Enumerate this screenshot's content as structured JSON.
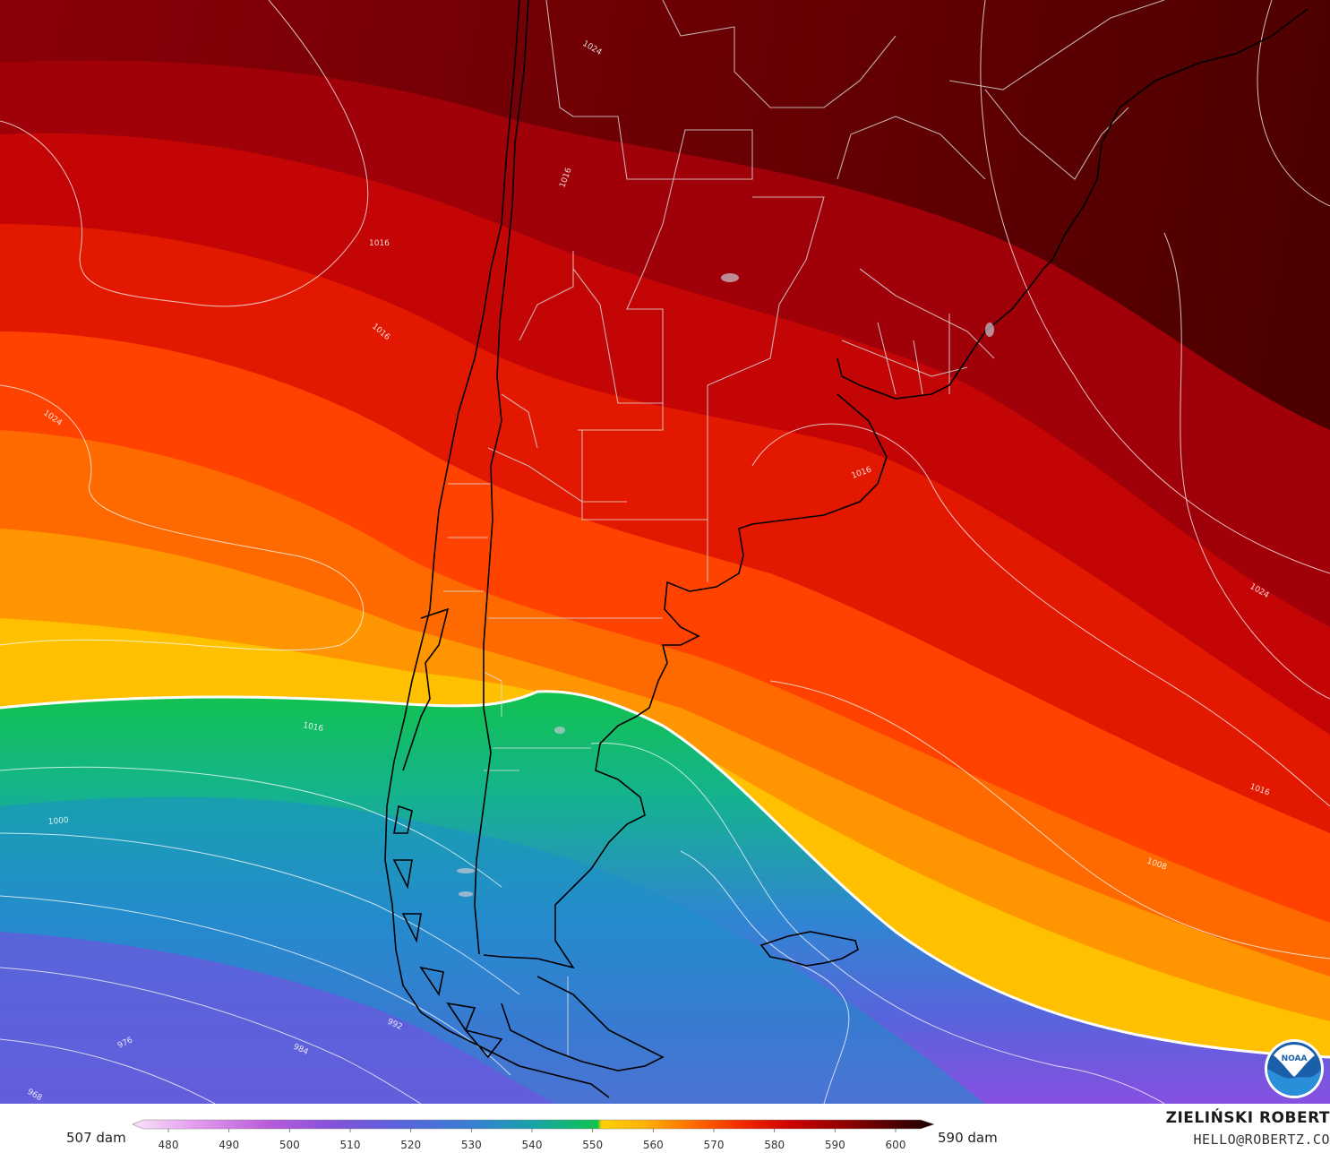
{
  "map": {
    "isobar_labels": [
      "1024",
      "1016",
      "1016",
      "1024",
      "1016",
      "1016",
      "1000",
      "992",
      "984",
      "976",
      "968",
      "1016",
      "1008",
      "1024",
      "1016"
    ]
  },
  "legend": {
    "left_label": "507 dam",
    "right_label": "590 dam",
    "ticks": [
      "480",
      "490",
      "500",
      "510",
      "520",
      "530",
      "540",
      "550",
      "560",
      "570",
      "580",
      "590",
      "600"
    ],
    "colors": [
      "#f9d8f6",
      "#e08ce8",
      "#b255d8",
      "#7f4fd9",
      "#5a62dc",
      "#3a7bd5",
      "#1d9bb8",
      "#12b88a",
      "#0cc850",
      "#ffd000",
      "#ff9a00",
      "#ff5a00",
      "#f01e00",
      "#c80000",
      "#8b0000",
      "#5a0000",
      "#2a0000"
    ]
  },
  "credit": {
    "name": "ZIELIŃSKI ROBERT",
    "email": "HELLO@ROBERTZ.CO"
  },
  "logo": {
    "icon": "noaa-logo",
    "text": "NOAA"
  }
}
